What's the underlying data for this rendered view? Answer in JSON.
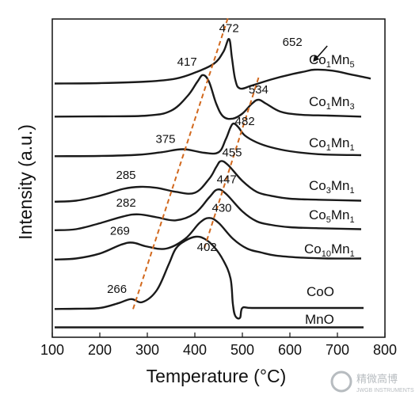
{
  "chart_data": {
    "type": "line",
    "xlabel": "Temperature (°C)",
    "ylabel": "Intensity (a.u.)",
    "xlim": [
      100,
      800
    ],
    "xticks": [
      100,
      200,
      300,
      400,
      500,
      600,
      700,
      800
    ],
    "grid": false,
    "series": [
      {
        "name": "Co1Mn5",
        "label_parts": [
          [
            "Co",
            ""
          ],
          [
            "1",
            "sub"
          ],
          [
            "Mn",
            ""
          ],
          [
            "5",
            "sub"
          ]
        ],
        "x": [
          105,
          200,
          300,
          360,
          400,
          440,
          460,
          472,
          478,
          485,
          495,
          520,
          560,
          600,
          630,
          652,
          690,
          730,
          770
        ],
        "y": [
          1.7,
          1.72,
          1.8,
          1.95,
          2.25,
          2.7,
          3.3,
          3.95,
          3.0,
          1.9,
          1.45,
          1.6,
          1.9,
          2.15,
          2.3,
          2.4,
          2.35,
          2.15,
          1.95
        ],
        "peaks": [
          472,
          652
        ]
      },
      {
        "name": "Co1Mn3",
        "label_parts": [
          [
            "Co",
            ""
          ],
          [
            "1",
            "sub"
          ],
          [
            "Mn",
            ""
          ],
          [
            "3",
            "sub"
          ]
        ],
        "x": [
          105,
          200,
          300,
          350,
          385,
          405,
          417,
          430,
          445,
          460,
          480,
          500,
          520,
          534,
          550,
          580,
          620,
          680,
          750
        ],
        "y": [
          0.55,
          0.56,
          0.6,
          0.85,
          1.6,
          2.3,
          2.65,
          2.3,
          1.2,
          0.55,
          0.45,
          0.7,
          1.2,
          1.4,
          1.2,
          0.8,
          0.65,
          0.6,
          0.55
        ],
        "peaks": [
          417,
          534
        ]
      },
      {
        "name": "Co1Mn1",
        "label_parts": [
          [
            "Co",
            ""
          ],
          [
            "1",
            "sub"
          ],
          [
            "Mn",
            ""
          ],
          [
            "1",
            "sub"
          ]
        ],
        "x": [
          105,
          200,
          280,
          330,
          375,
          420,
          450,
          465,
          475,
          482,
          492,
          505,
          530,
          560,
          600,
          660,
          750
        ],
        "y": [
          0.55,
          0.56,
          0.62,
          0.75,
          0.9,
          0.72,
          0.75,
          1.4,
          2.0,
          2.2,
          2.0,
          1.6,
          1.25,
          1.0,
          0.8,
          0.65,
          0.6
        ],
        "peaks": [
          375,
          482
        ]
      },
      {
        "name": "Co3Mn1",
        "label_parts": [
          [
            "Co",
            ""
          ],
          [
            "3",
            "sub"
          ],
          [
            "Mn",
            ""
          ],
          [
            "1",
            "sub"
          ]
        ],
        "x": [
          105,
          150,
          200,
          250,
          285,
          320,
          360,
          400,
          430,
          445,
          455,
          470,
          500,
          530,
          560,
          600,
          660,
          750
        ],
        "y": [
          0.45,
          0.5,
          0.75,
          1.1,
          1.2,
          1.15,
          0.95,
          0.9,
          1.6,
          2.2,
          2.5,
          2.3,
          1.5,
          0.95,
          0.75,
          0.6,
          0.55,
          0.5
        ],
        "peaks": [
          285,
          455
        ]
      },
      {
        "name": "Co5Mn1",
        "label_parts": [
          [
            "Co",
            ""
          ],
          [
            "5",
            "sub"
          ],
          [
            "Mn",
            ""
          ],
          [
            "1",
            "sub"
          ]
        ],
        "x": [
          105,
          150,
          200,
          250,
          282,
          320,
          360,
          400,
          430,
          447,
          465,
          500,
          530,
          560,
          600,
          660,
          750
        ],
        "y": [
          0.45,
          0.5,
          0.8,
          1.15,
          1.25,
          1.1,
          0.95,
          1.3,
          2.1,
          2.5,
          2.3,
          1.4,
          0.9,
          0.72,
          0.6,
          0.55,
          0.5
        ],
        "peaks": [
          282,
          447
        ]
      },
      {
        "name": "Co10Mn1",
        "label_parts": [
          [
            "Co",
            ""
          ],
          [
            "10",
            "sub"
          ],
          [
            "Mn",
            ""
          ],
          [
            "1",
            "sub"
          ]
        ],
        "x": [
          105,
          150,
          200,
          245,
          269,
          300,
          340,
          380,
          410,
          430,
          450,
          480,
          510,
          540,
          570,
          620,
          680,
          750
        ],
        "y": [
          0.45,
          0.5,
          0.75,
          1.2,
          1.3,
          1.1,
          1.0,
          1.5,
          2.3,
          2.55,
          2.3,
          1.5,
          1.0,
          0.8,
          0.65,
          0.55,
          0.5,
          0.5
        ],
        "peaks": [
          269,
          430
        ]
      },
      {
        "name": "CoO",
        "label_parts": [
          [
            "CoO",
            ""
          ]
        ],
        "x": [
          105,
          150,
          200,
          240,
          266,
          290,
          320,
          345,
          360,
          380,
          402,
          420,
          440,
          460,
          475,
          480,
          485,
          495,
          500,
          520,
          600,
          680,
          755
        ],
        "y": [
          0.55,
          0.56,
          0.6,
          0.85,
          1.05,
          0.9,
          1.5,
          2.8,
          3.6,
          4.0,
          4.2,
          4.1,
          3.7,
          3.0,
          2.1,
          0.8,
          0.2,
          0.1,
          0.6,
          0.6,
          0.6,
          0.6,
          0.6
        ],
        "peaks": [
          266,
          402
        ]
      },
      {
        "name": "MnO",
        "label_parts": [
          [
            "MnO",
            ""
          ]
        ],
        "x": [
          105,
          300,
          500,
          755
        ],
        "y": [
          0.3,
          0.3,
          0.3,
          0.3
        ],
        "peaks": []
      }
    ],
    "peak_labels": [
      "472",
      "652",
      "417",
      "534",
      "375",
      "482",
      "285",
      "455",
      "282",
      "447",
      "269",
      "430",
      "266",
      "402"
    ],
    "annotations": {
      "dashed_trend_lines": [
        {
          "color": "#d2691e",
          "from": [
            270,
            "CoO"
          ],
          "to": [
            470,
            "Co1Mn5"
          ]
        },
        {
          "color": "#d2691e",
          "from": [
            420,
            "CoO"
          ],
          "to": [
            535,
            "Co1Mn3"
          ]
        }
      ],
      "arrow": {
        "target_series": "Co1Mn5",
        "at_x": 652
      }
    }
  },
  "watermark": {
    "main": "精微高博",
    "sub": "JWGB INSTRUMENTS"
  }
}
